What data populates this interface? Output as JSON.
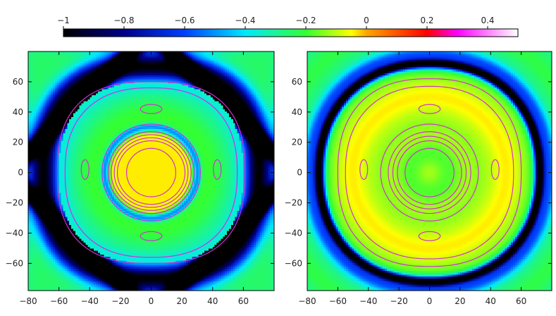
{
  "colorbar": {
    "ticks": [
      "−1",
      "−0.8",
      "−0.6",
      "−0.4",
      "−0.2",
      "0",
      "0.2",
      "0.4"
    ],
    "tick_values": [
      -1,
      -0.8,
      -0.6,
      -0.4,
      -0.2,
      0,
      0.2,
      0.4
    ],
    "range": [
      -1,
      0.5
    ],
    "colors": [
      {
        "v": -1.0,
        "c": "#000000"
      },
      {
        "v": -0.8,
        "c": "#000088"
      },
      {
        "v": -0.6,
        "c": "#0040ff"
      },
      {
        "v": -0.4,
        "c": "#00e8ff"
      },
      {
        "v": -0.2,
        "c": "#33ff33"
      },
      {
        "v": -0.05,
        "c": "#ffff00"
      },
      {
        "v": 0.0,
        "c": "#ffa500"
      },
      {
        "v": 0.2,
        "c": "#ff0000"
      },
      {
        "v": 0.3,
        "c": "#ff00ff"
      },
      {
        "v": 0.5,
        "c": "#ffffff"
      }
    ]
  },
  "chart_data": [
    {
      "type": "heatmap",
      "title": "",
      "xlabel": "",
      "ylabel": "",
      "xlim": [
        -80,
        80
      ],
      "ylim": [
        -78,
        80
      ],
      "xticks": [
        "−80",
        "−60",
        "−40",
        "−20",
        "0",
        "20",
        "40",
        "60"
      ],
      "xtick_values": [
        -80,
        -60,
        -40,
        -20,
        0,
        20,
        40,
        60
      ],
      "yticks": [
        "60",
        "40",
        "20",
        "0",
        "−20",
        "−40",
        "−60"
      ],
      "ytick_values": [
        60,
        40,
        20,
        0,
        -20,
        -40,
        -60
      ],
      "field": "dark diamond-shaped trough (value about -1) around a central orange plateau (about 0); green/cyan background",
      "contour_color": "#d030d0",
      "contours": [
        {
          "shape": "superellipse",
          "cx": 0,
          "cy": 0,
          "rx": 61,
          "ry": 60,
          "n": 2.6
        },
        {
          "shape": "superellipse",
          "cx": 0,
          "cy": 0,
          "rx": 56,
          "ry": 56,
          "n": 2.4
        },
        {
          "shape": "ellipse",
          "cx": 0,
          "cy": 0,
          "rx": 32,
          "ry": 32
        },
        {
          "shape": "ellipse",
          "cx": 0,
          "cy": 0,
          "rx": 28,
          "ry": 27
        },
        {
          "shape": "ellipse",
          "cx": 0,
          "cy": 0,
          "rx": 26,
          "ry": 25
        },
        {
          "shape": "ellipse",
          "cx": 0,
          "cy": 0,
          "rx": 24,
          "ry": 23
        },
        {
          "shape": "ellipse",
          "cx": 0,
          "cy": 0,
          "rx": 22,
          "ry": 21
        },
        {
          "shape": "ellipse",
          "cx": 0,
          "cy": 0,
          "rx": 16,
          "ry": 16
        },
        {
          "shape": "ellipse",
          "cx": 0,
          "cy": 42,
          "rx": 7,
          "ry": 3
        },
        {
          "shape": "ellipse",
          "cx": 0,
          "cy": -42,
          "rx": 7,
          "ry": 3
        },
        {
          "shape": "ellipse",
          "cx": -43,
          "cy": 2,
          "rx": 2.5,
          "ry": 6.5
        },
        {
          "shape": "ellipse",
          "cx": 43,
          "cy": 2,
          "rx": 2.5,
          "ry": 6.5
        }
      ]
    },
    {
      "type": "heatmap",
      "title": "",
      "xlabel": "",
      "ylabel": "",
      "xlim": [
        -80,
        80
      ],
      "ylim": [
        -78,
        80
      ],
      "xticks": [
        "−80",
        "−60",
        "−40",
        "−20",
        "0",
        "20",
        "40",
        "60"
      ],
      "xtick_values": [
        -80,
        -60,
        -40,
        -20,
        0,
        20,
        40,
        60
      ],
      "yticks": [
        "60",
        "40",
        "20",
        "0",
        "−20",
        "−40",
        "−60"
      ],
      "ytick_values": [
        60,
        40,
        20,
        0,
        -20,
        -40,
        -60
      ],
      "field": "broad yellow/orange rounded region with a green core and a thin dark ring near radius 70; green background",
      "contour_color": "#d030d0",
      "contours": [
        {
          "shape": "superellipse",
          "cx": 0,
          "cy": 0,
          "rx": 60,
          "ry": 62,
          "n": 2.4
        },
        {
          "shape": "superellipse",
          "cx": 0,
          "cy": 0,
          "rx": 55,
          "ry": 57,
          "n": 2.3
        },
        {
          "shape": "ellipse",
          "cx": 0,
          "cy": 0,
          "rx": 32,
          "ry": 32
        },
        {
          "shape": "ellipse",
          "cx": 0,
          "cy": 0,
          "rx": 27,
          "ry": 27
        },
        {
          "shape": "ellipse",
          "cx": 0,
          "cy": 0,
          "rx": 24,
          "ry": 24
        },
        {
          "shape": "ellipse",
          "cx": 0,
          "cy": 0,
          "rx": 21,
          "ry": 21
        },
        {
          "shape": "ellipse",
          "cx": 0,
          "cy": 0,
          "rx": 16,
          "ry": 16
        },
        {
          "shape": "ellipse",
          "cx": 0,
          "cy": 42,
          "rx": 7,
          "ry": 3
        },
        {
          "shape": "ellipse",
          "cx": 0,
          "cy": -42,
          "rx": 7,
          "ry": 3
        },
        {
          "shape": "ellipse",
          "cx": -43,
          "cy": 2,
          "rx": 2.5,
          "ry": 6.5
        },
        {
          "shape": "ellipse",
          "cx": 43,
          "cy": 2,
          "rx": 2.5,
          "ry": 6.5
        }
      ]
    }
  ]
}
